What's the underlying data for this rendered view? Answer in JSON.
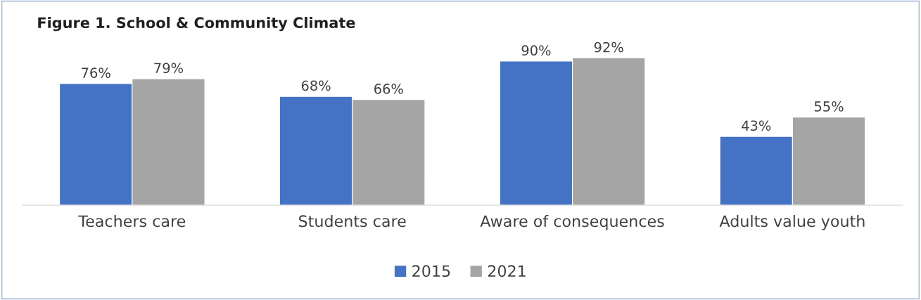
{
  "chart_data": {
    "type": "bar",
    "title": "Figure 1. School & Community Climate",
    "categories": [
      "Teachers care",
      "Students care",
      "Aware of consequences",
      "Adults value youth"
    ],
    "series": [
      {
        "name": "2015",
        "color": "#4472c4",
        "values": [
          76,
          68,
          90,
          43
        ],
        "value_labels": [
          "76%",
          "68%",
          "90%",
          "43%"
        ]
      },
      {
        "name": "2021",
        "color": "#a5a5a5",
        "values": [
          79,
          66,
          92,
          55
        ],
        "value_labels": [
          "79%",
          "66%",
          "92%",
          "55%"
        ]
      }
    ],
    "legend": "bottom",
    "grid": false
  }
}
